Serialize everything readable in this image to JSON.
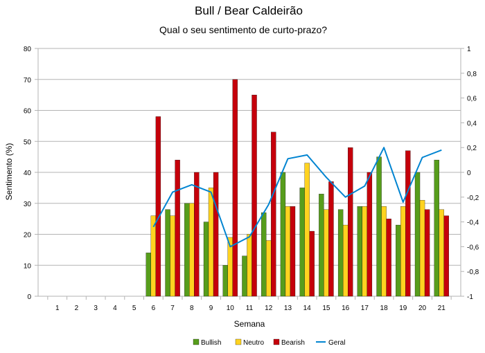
{
  "chart_data": {
    "type": "bar",
    "title": "Bull / Bear Caldeirão",
    "subtitle": "Qual o seu sentimento de curto-prazo?",
    "xlabel": "Semana",
    "ylabel": "Sentimento (%)",
    "categories": [
      "1",
      "2",
      "3",
      "4",
      "5",
      "6",
      "7",
      "8",
      "9",
      "10",
      "11",
      "12",
      "13",
      "14",
      "15",
      "16",
      "17",
      "18",
      "19",
      "20",
      "21"
    ],
    "ylim": [
      0,
      80
    ],
    "y_ticks": [
      "0",
      "10",
      "20",
      "30",
      "40",
      "50",
      "60",
      "70",
      "80"
    ],
    "y2lim": [
      -1,
      1
    ],
    "y2_ticks": [
      "-1",
      "-0,8",
      "-0,6",
      "-0,4",
      "-0,2",
      "0",
      "0,2",
      "0,4",
      "0,6",
      "0,8",
      "1"
    ],
    "grid": true,
    "legend_position": "bottom",
    "series": [
      {
        "name": "Bullish",
        "type": "bar",
        "color": "#579d1c",
        "values": [
          null,
          null,
          null,
          null,
          null,
          14,
          28,
          30,
          24,
          10,
          13,
          27,
          40,
          35,
          33,
          28,
          29,
          45,
          23,
          40,
          44
        ]
      },
      {
        "name": "Neutro",
        "type": "bar",
        "color": "#ffd320",
        "values": [
          null,
          null,
          null,
          null,
          null,
          26,
          26,
          30,
          35,
          19,
          20,
          18,
          29,
          43,
          28,
          23,
          29,
          29,
          29,
          31,
          28
        ]
      },
      {
        "name": "Bearish",
        "type": "bar",
        "color": "#c5000b",
        "values": [
          null,
          null,
          null,
          null,
          null,
          58,
          44,
          40,
          40,
          70,
          65,
          53,
          29,
          21,
          37,
          48,
          40,
          25,
          47,
          28,
          26
        ]
      },
      {
        "name": "Geral",
        "type": "line",
        "axis": "right",
        "color": "#0084d1",
        "values": [
          null,
          null,
          null,
          null,
          null,
          -0.44,
          -0.16,
          -0.1,
          -0.16,
          -0.6,
          -0.52,
          -0.26,
          0.11,
          0.14,
          -0.04,
          -0.2,
          -0.11,
          0.2,
          -0.24,
          0.12,
          0.18
        ]
      }
    ]
  }
}
